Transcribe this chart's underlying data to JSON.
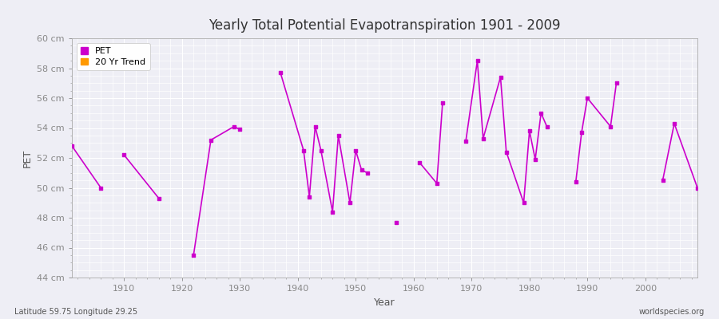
{
  "title": "Yearly Total Potential Evapotranspiration 1901 - 2009",
  "xlabel": "Year",
  "ylabel": "PET",
  "subtitle_left": "Latitude 59.75 Longitude 29.25",
  "subtitle_right": "worldspecies.org",
  "ylim": [
    44,
    60
  ],
  "xlim": [
    1901,
    2009
  ],
  "yticks": [
    44,
    46,
    48,
    50,
    52,
    54,
    56,
    58,
    60
  ],
  "ytick_labels": [
    "44 cm",
    "46 cm",
    "48 cm",
    "50 cm",
    "52 cm",
    "54 cm",
    "56 cm",
    "58 cm",
    "60 cm"
  ],
  "xticks": [
    1910,
    1920,
    1930,
    1940,
    1950,
    1960,
    1970,
    1980,
    1990,
    2000
  ],
  "pet_color": "#cc00cc",
  "trend_color": "#ff9900",
  "bg_color": "#eeeef5",
  "plot_bg": "#eeeef5",
  "grid_color": "#ffffff",
  "pet_data": {
    "years": [
      1901,
      1906,
      1910,
      1916,
      1922,
      1925,
      1929,
      1930,
      1937,
      1941,
      1942,
      1943,
      1944,
      1946,
      1947,
      1949,
      1950,
      1951,
      1952,
      1957,
      1961,
      1964,
      1965,
      1969,
      1971,
      1972,
      1975,
      1976,
      1979,
      1980,
      1981,
      1982,
      1983,
      1988,
      1989,
      1990,
      1994,
      1995,
      2003,
      2005,
      2009
    ],
    "values": [
      52.8,
      50.0,
      52.2,
      49.3,
      45.5,
      53.2,
      54.1,
      53.9,
      57.7,
      52.5,
      49.4,
      54.1,
      52.5,
      48.4,
      53.5,
      49.0,
      52.5,
      51.2,
      51.0,
      47.7,
      51.7,
      50.3,
      55.7,
      53.1,
      58.5,
      53.3,
      57.4,
      52.4,
      49.0,
      53.8,
      51.9,
      55.0,
      54.1,
      50.4,
      53.7,
      56.0,
      54.1,
      57.0,
      50.5,
      54.3,
      50.0
    ]
  },
  "line_segments": [
    [
      1901,
      1906
    ],
    [
      1910,
      1916
    ],
    [
      1922,
      1925,
      1929,
      1930
    ],
    [
      1937,
      1941,
      1942,
      1943,
      1944,
      1946,
      1947,
      1949,
      1950,
      1951,
      1952
    ],
    [
      1961,
      1964,
      1965
    ],
    [
      1969,
      1971,
      1972,
      1975,
      1976,
      1979,
      1980,
      1981,
      1982,
      1983
    ],
    [
      1988,
      1989,
      1990,
      1994,
      1995
    ],
    [
      2003,
      2005,
      2009
    ]
  ]
}
